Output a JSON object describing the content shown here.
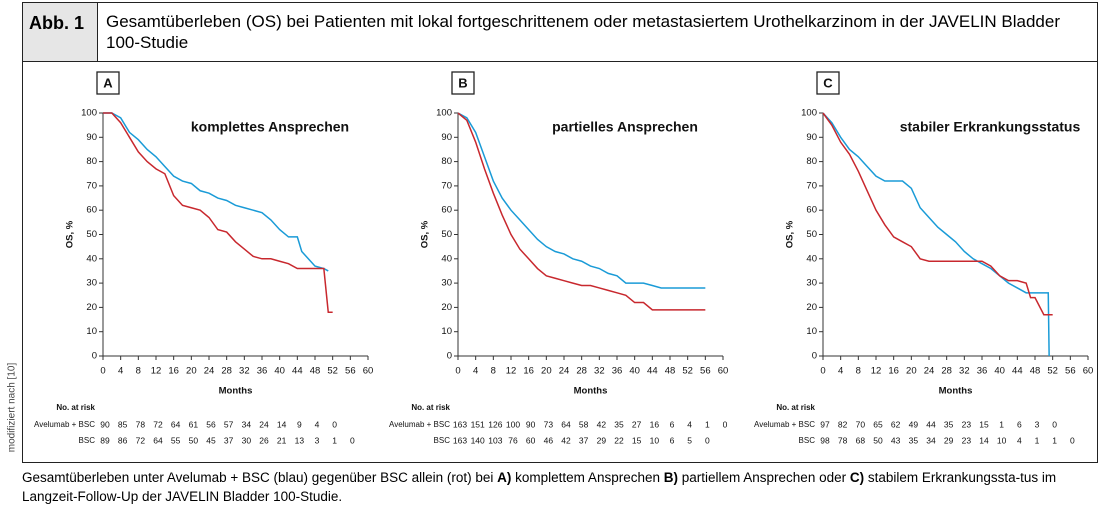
{
  "figure": {
    "label": "Abb. 1",
    "title": "Gesamtüberleben (OS) bei Patienten mit lokal fortgeschrittenem oder metastasiertem Urothelkarzinom in der JAVELIN Bladder 100-Studie",
    "side_note": "modifiziert nach [10]",
    "caption": [
      "Gesamtüberleben unter Avelumab + BSC (blau) gegenüber BSC allein (rot) bei ",
      "A)",
      " komplettem Ansprechen ",
      "B)",
      " partiellem Ansprechen oder ",
      "C)",
      " stabilem Erkrankungssta-tus im Langzeit-Follow-Up der JAVELIN Bladder 100-Studie."
    ]
  },
  "chart_data": [
    {
      "type": "line",
      "panel": "A",
      "title": "komplettes Ansprechen",
      "xlabel": "Months",
      "ylabel": "OS, %",
      "xlim": [
        0,
        60
      ],
      "xticks": [
        0,
        4,
        8,
        12,
        16,
        20,
        24,
        28,
        32,
        36,
        40,
        44,
        48,
        52,
        56,
        60
      ],
      "ylim": [
        0,
        100
      ],
      "yticks": [
        0,
        10,
        20,
        30,
        40,
        50,
        60,
        70,
        80,
        90,
        100
      ],
      "risk_label": "No. at risk",
      "series": [
        {
          "name": "Avelumab + BSC",
          "color": "#1a9bd7",
          "x": [
            0,
            2,
            4,
            6,
            8,
            10,
            12,
            14,
            16,
            18,
            20,
            22,
            24,
            26,
            28,
            30,
            32,
            34,
            36,
            38,
            40,
            42,
            44,
            45,
            48,
            50,
            51
          ],
          "values": [
            100,
            100,
            98,
            92,
            89,
            85,
            82,
            78,
            74,
            72,
            71,
            68,
            67,
            65,
            64,
            62,
            61,
            60,
            59,
            56,
            52,
            49,
            49,
            43,
            37,
            36,
            35
          ],
          "at_risk": [
            90,
            85,
            78,
            72,
            64,
            61,
            56,
            57,
            34,
            24,
            14,
            9,
            4,
            0
          ]
        },
        {
          "name": "BSC",
          "color": "#c8282e",
          "x": [
            0,
            2,
            4,
            6,
            8,
            10,
            12,
            14,
            16,
            18,
            20,
            22,
            24,
            26,
            28,
            30,
            32,
            34,
            36,
            38,
            40,
            42,
            44,
            46,
            48,
            50,
            51,
            52
          ],
          "values": [
            100,
            100,
            96,
            90,
            84,
            80,
            77,
            75,
            66,
            62,
            61,
            60,
            57,
            52,
            51,
            47,
            44,
            41,
            40,
            40,
            39,
            38,
            36,
            36,
            36,
            36,
            18,
            18
          ],
          "at_risk": [
            89,
            86,
            72,
            64,
            55,
            50,
            45,
            37,
            30,
            26,
            21,
            13,
            3,
            1,
            0
          ]
        }
      ]
    },
    {
      "type": "line",
      "panel": "B",
      "title": "partielles Ansprechen",
      "xlabel": "Months",
      "ylabel": "OS, %",
      "xlim": [
        0,
        60
      ],
      "xticks": [
        0,
        4,
        8,
        12,
        16,
        20,
        24,
        28,
        32,
        36,
        40,
        44,
        48,
        52,
        56,
        60
      ],
      "ylim": [
        0,
        100
      ],
      "yticks": [
        0,
        10,
        20,
        30,
        40,
        50,
        60,
        70,
        80,
        90,
        100
      ],
      "risk_label": "No. at risk",
      "series": [
        {
          "name": "Avelumab + BSC",
          "color": "#1a9bd7",
          "x": [
            0,
            2,
            4,
            6,
            8,
            10,
            12,
            14,
            16,
            18,
            20,
            22,
            24,
            26,
            28,
            30,
            32,
            34,
            36,
            38,
            40,
            42,
            44,
            46,
            48,
            52,
            56
          ],
          "values": [
            100,
            98,
            92,
            82,
            72,
            65,
            60,
            56,
            52,
            48,
            45,
            43,
            42,
            40,
            39,
            37,
            36,
            34,
            33,
            30,
            30,
            30,
            29,
            28,
            28,
            28,
            28
          ],
          "at_risk": [
            163,
            151,
            126,
            100,
            90,
            73,
            64,
            58,
            42,
            35,
            27,
            16,
            6,
            4,
            1,
            0
          ]
        },
        {
          "name": "BSC",
          "color": "#c8282e",
          "x": [
            0,
            2,
            4,
            6,
            8,
            10,
            12,
            14,
            16,
            18,
            20,
            22,
            24,
            26,
            28,
            30,
            32,
            34,
            36,
            38,
            40,
            42,
            44,
            48,
            52,
            56
          ],
          "values": [
            100,
            97,
            88,
            77,
            67,
            58,
            50,
            44,
            40,
            36,
            33,
            32,
            31,
            30,
            29,
            29,
            28,
            27,
            26,
            25,
            22,
            22,
            19,
            19,
            19,
            19
          ],
          "at_risk": [
            163,
            140,
            103,
            76,
            60,
            46,
            42,
            37,
            29,
            22,
            15,
            10,
            6,
            5,
            0
          ]
        }
      ]
    },
    {
      "type": "line",
      "panel": "C",
      "title": "stabiler Erkrankungsstatus",
      "xlabel": "Months",
      "ylabel": "OS, %",
      "xlim": [
        0,
        60
      ],
      "xticks": [
        0,
        4,
        8,
        12,
        16,
        20,
        24,
        28,
        32,
        36,
        40,
        44,
        48,
        52,
        56,
        60
      ],
      "ylim": [
        0,
        100
      ],
      "yticks": [
        0,
        10,
        20,
        30,
        40,
        50,
        60,
        70,
        80,
        90,
        100
      ],
      "risk_label": "No. at risk",
      "series": [
        {
          "name": "Avelumab + BSC",
          "color": "#1a9bd7",
          "x": [
            0,
            2,
            4,
            6,
            8,
            10,
            12,
            14,
            16,
            18,
            20,
            22,
            24,
            26,
            28,
            30,
            32,
            34,
            36,
            38,
            40,
            42,
            44,
            46,
            48,
            50,
            51,
            51.2
          ],
          "values": [
            100,
            96,
            90,
            85,
            82,
            78,
            74,
            72,
            72,
            72,
            69,
            61,
            57,
            53,
            50,
            47,
            43,
            40,
            38,
            36,
            33,
            30,
            28,
            26,
            26,
            26,
            26,
            0
          ],
          "at_risk": [
            97,
            82,
            70,
            65,
            62,
            49,
            44,
            35,
            23,
            15,
            1,
            6,
            3,
            0
          ]
        },
        {
          "name": "BSC",
          "color": "#c8282e",
          "x": [
            0,
            2,
            4,
            6,
            8,
            10,
            12,
            14,
            16,
            18,
            20,
            22,
            24,
            28,
            32,
            36,
            38,
            40,
            42,
            44,
            46,
            47,
            48,
            50,
            52
          ],
          "values": [
            100,
            95,
            88,
            83,
            76,
            68,
            60,
            54,
            49,
            47,
            45,
            40,
            39,
            39,
            39,
            39,
            37,
            33,
            31,
            31,
            30,
            24,
            24,
            17,
            17
          ],
          "at_risk": [
            98,
            78,
            68,
            50,
            43,
            35,
            34,
            29,
            23,
            14,
            10,
            4,
            1,
            1,
            0
          ]
        }
      ]
    }
  ]
}
